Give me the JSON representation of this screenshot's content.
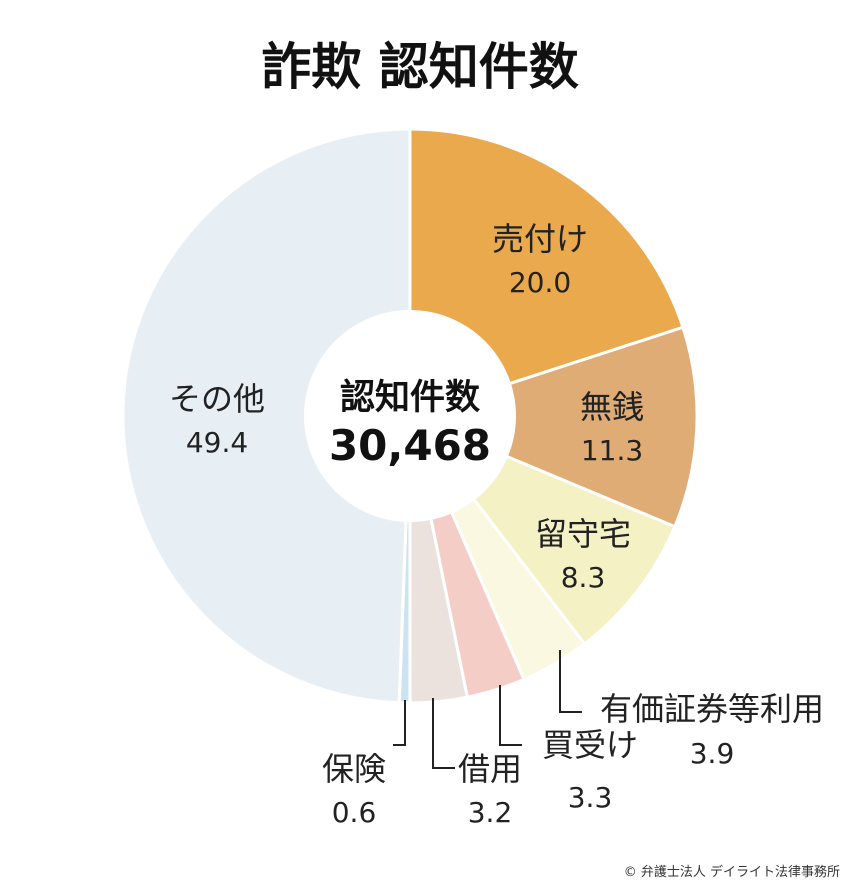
{
  "chart_data": {
    "type": "pie",
    "title": "詐欺 認知件数",
    "center_label": "認知件数",
    "center_value": "30,468",
    "slices": [
      {
        "label": "売付け",
        "value": 20.0,
        "value_text": "20.0",
        "color": "#E9A94C"
      },
      {
        "label": "無銭",
        "value": 11.3,
        "value_text": "11.3",
        "color": "#DEAC74"
      },
      {
        "label": "留守宅",
        "value": 8.3,
        "value_text": "8.3",
        "color": "#F4F1C5"
      },
      {
        "label": "有価証券等利用",
        "value": 3.9,
        "value_text": "3.9",
        "color": "#FBF8E1"
      },
      {
        "label": "買受け",
        "value": 3.3,
        "value_text": "3.3",
        "color": "#F3CDC6"
      },
      {
        "label": "借用",
        "value": 3.2,
        "value_text": "3.2",
        "color": "#ECE2DD"
      },
      {
        "label": "保険",
        "value": 0.6,
        "value_text": "0.6",
        "color": "#CCE3F1"
      },
      {
        "label": "その他",
        "value": 49.4,
        "value_text": "49.4",
        "color": "#E8EFF4"
      }
    ]
  },
  "credit": "© 弁護士法人 デイライト法律事務所"
}
